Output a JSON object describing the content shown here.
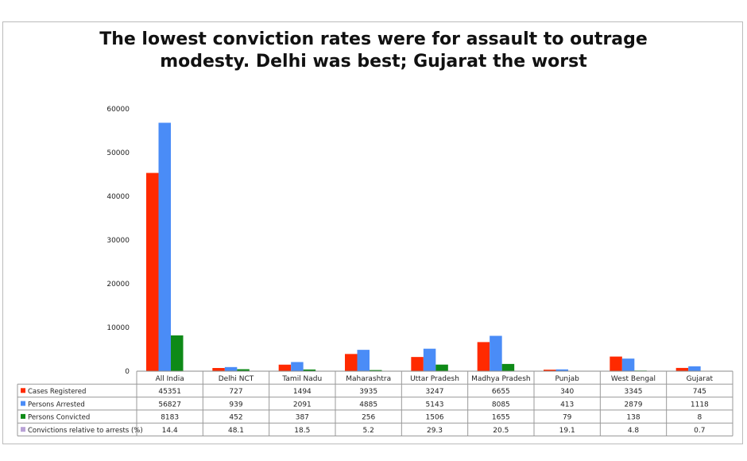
{
  "chart_data": {
    "type": "bar",
    "title": "The lowest conviction rates were for assault to outrage modesty. Delhi was best; Gujarat the worst",
    "title_lines": [
      "The lowest conviction rates were for assault to outrage",
      "modesty. Delhi was best; Gujarat the worst"
    ],
    "categories": [
      "All India",
      "Delhi NCT",
      "Tamil Nadu",
      "Maharashtra",
      "Uttar Pradesh",
      "Madhya Pradesh",
      "Punjab",
      "West Bengal",
      "Gujarat"
    ],
    "series": [
      {
        "name": "Cases Registered",
        "color": "#ff2a00",
        "values": [
          "45351",
          "727",
          "1494",
          "3935",
          "3247",
          "6655",
          "340",
          "3345",
          "745"
        ]
      },
      {
        "name": "Persons Arrested",
        "color": "#4a8cf7",
        "values": [
          "56827",
          "939",
          "2091",
          "4885",
          "5143",
          "8085",
          "413",
          "2879",
          "1118"
        ]
      },
      {
        "name": "Persons Convicted",
        "color": "#0e8a17",
        "values": [
          "8183",
          "452",
          "387",
          "256",
          "1506",
          "1655",
          "79",
          "138",
          "8"
        ]
      },
      {
        "name": "Convictions relative to arrests (%)",
        "color": "#b9a2d6",
        "values": [
          "14.4",
          "48.1",
          "18.5",
          "5.2",
          "29.3",
          "20.5",
          "19.1",
          "4.8",
          "0.7"
        ]
      }
    ],
    "yticks": [
      "0",
      "10000",
      "20000",
      "30000",
      "40000",
      "50000",
      "60000"
    ],
    "ylim": [
      0,
      60000
    ],
    "xlabel": "",
    "ylabel": "",
    "grid": false,
    "legend": "data-table below chart"
  }
}
